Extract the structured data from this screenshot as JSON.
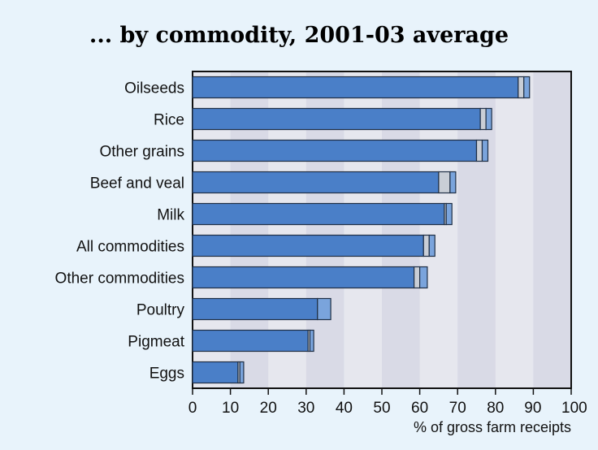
{
  "chart_data": {
    "type": "bar",
    "orientation": "horizontal",
    "stacked": true,
    "title": "... by commodity, 2001-03 average",
    "xlabel": "% of gross farm receipts",
    "ylabel": "",
    "xlim": [
      0,
      100
    ],
    "xticks": [
      "0",
      "10",
      "20",
      "30",
      "40",
      "50",
      "60",
      "70",
      "80",
      "90",
      "100"
    ],
    "grid": false,
    "legend": "none",
    "categories": [
      "Oilseeds",
      "Rice",
      "Other grains",
      "Beef and veal",
      "Milk",
      "All commodities",
      "Other commodities",
      "Poultry",
      "Pigmeat",
      "Eggs"
    ],
    "series": [
      {
        "values": [
          86,
          76,
          75,
          65,
          66.5,
          61,
          58.5,
          33,
          30.5,
          12
        ],
        "color": "#4a7fc8"
      },
      {
        "values": [
          1.5,
          1.5,
          1.5,
          3,
          0.5,
          1.5,
          1.5,
          0,
          0.5,
          0.5
        ],
        "color": "#c9ced6"
      },
      {
        "values": [
          1.5,
          1.5,
          1.5,
          1.5,
          1.5,
          1.5,
          2,
          3.5,
          1,
          1
        ],
        "color": "#7aa4dc"
      }
    ],
    "colors": {
      "background": "#e8f3fb",
      "plot_background": "#e6e7ee",
      "grid_band": "#d9dae6",
      "bar_outline": "#1f2f45",
      "axis": "#111111"
    }
  }
}
